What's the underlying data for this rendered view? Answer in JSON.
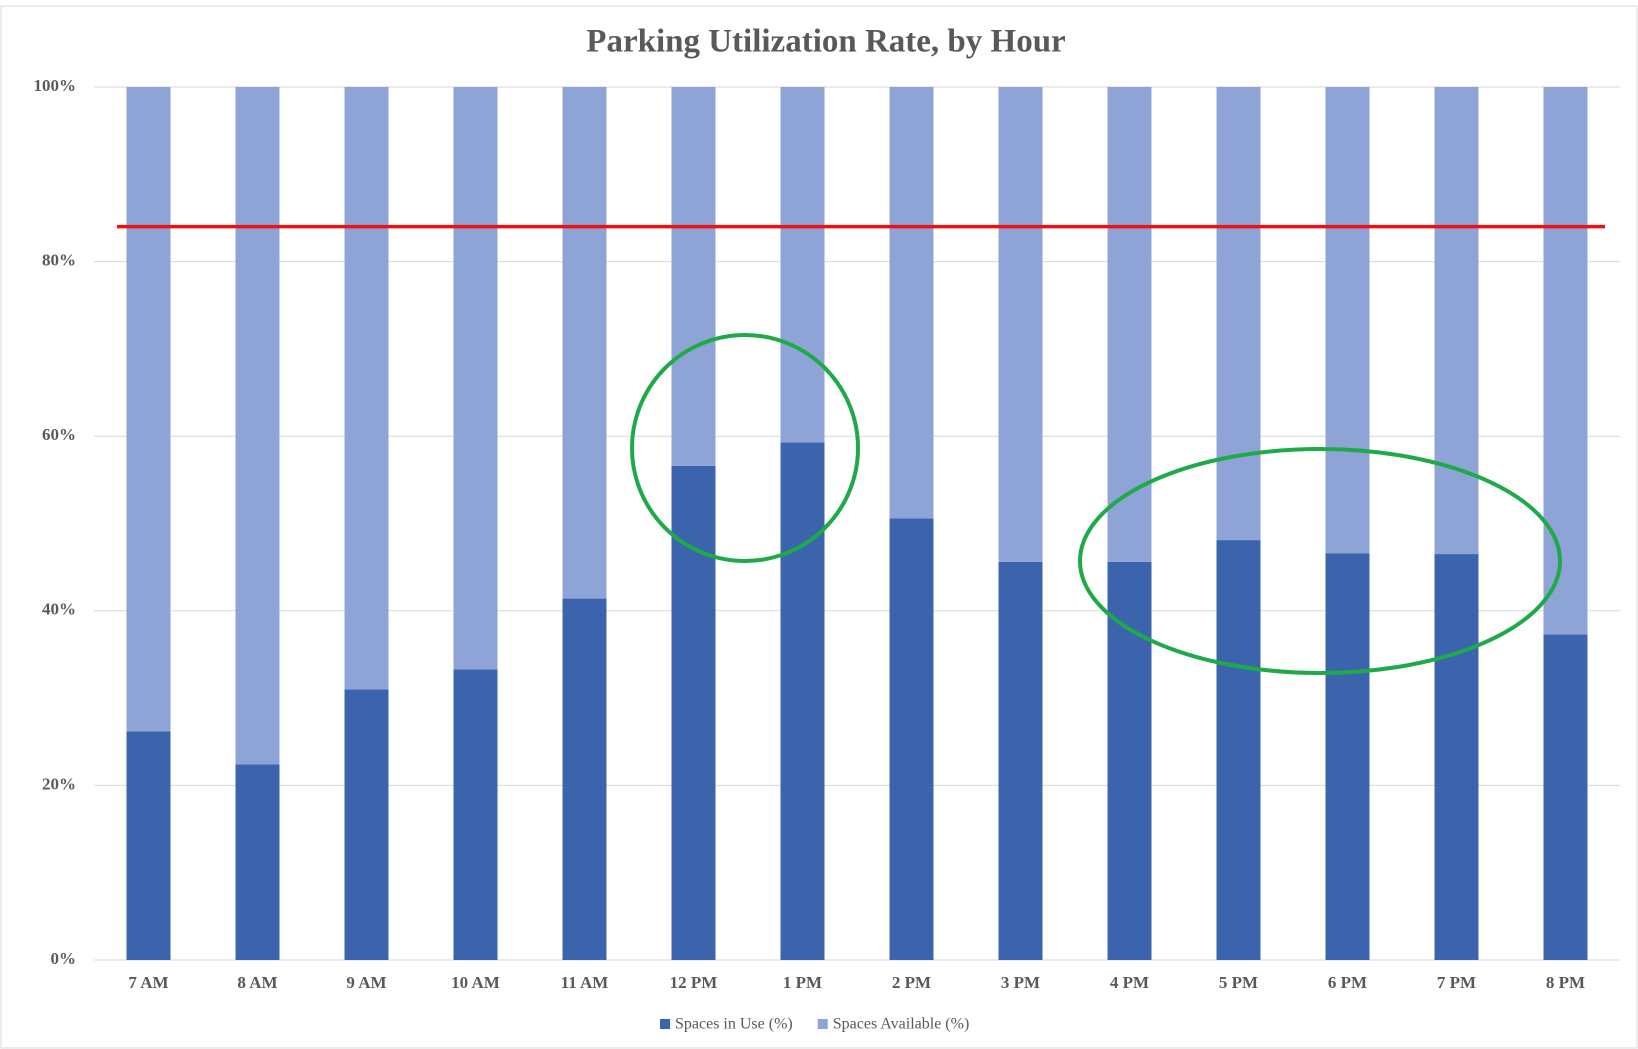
{
  "chart_data": {
    "type": "stacked_bar",
    "title": "Parking Utilization Rate, by Hour",
    "categories": [
      "7 AM",
      "8 AM",
      "9 AM",
      "10 AM",
      "11 AM",
      "12 PM",
      "1 PM",
      "2 PM",
      "3 PM",
      "4 PM",
      "5 PM",
      "6 PM",
      "7 PM",
      "8 PM"
    ],
    "series": [
      {
        "name": "Spaces in Use (%)",
        "color": "#3c64ad",
        "values": [
          26.2,
          22.4,
          31,
          33.3,
          41.4,
          56.6,
          59.3,
          50.6,
          45.6,
          45.6,
          48.1,
          46.6,
          46.5,
          37.3
        ]
      },
      {
        "name": "Spaces Available (%)",
        "color": "#8fa4d6",
        "values": [
          73.8,
          77.6,
          69,
          66.7,
          58.6,
          43.4,
          40.7,
          49.4,
          54.4,
          54.4,
          51.9,
          53.4,
          53.5,
          62.7
        ]
      }
    ],
    "ylim": [
      0,
      100
    ],
    "yticks": [
      {
        "value": 0,
        "label": "0%"
      },
      {
        "value": 20,
        "label": "20%"
      },
      {
        "value": 40,
        "label": "40%"
      },
      {
        "value": 60,
        "label": "60%"
      },
      {
        "value": 80,
        "label": "80%"
      },
      {
        "value": 100,
        "label": "100%"
      }
    ],
    "grid": true,
    "legend": "bottom",
    "reference_line": {
      "value": 84,
      "color": "#ee1111"
    }
  }
}
